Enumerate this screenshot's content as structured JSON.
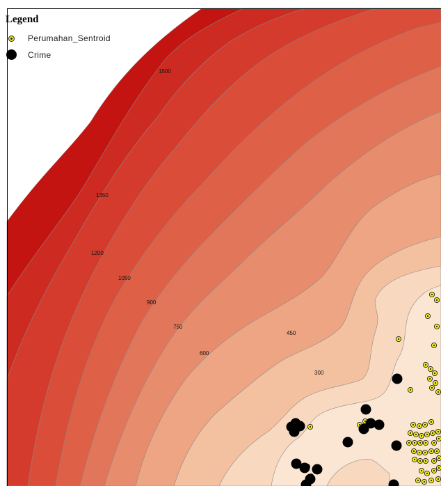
{
  "legend": {
    "title": "Legend",
    "items": [
      {
        "label": "Perumahan_Sentroid",
        "symbol": "yellow-dot-icon"
      },
      {
        "label": "Crime",
        "symbol": "black-dot-icon"
      }
    ]
  },
  "contours": [
    {
      "label": "1500"
    },
    {
      "label": "1350"
    },
    {
      "label": "1200"
    },
    {
      "label": "1050"
    },
    {
      "label": "900"
    },
    {
      "label": "750"
    },
    {
      "label": "600"
    },
    {
      "label": "450"
    },
    {
      "label": "300"
    }
  ],
  "colors": {
    "band_outer": "#c2100f",
    "band_inner": "#fbe6d4",
    "sentroid_fill": "#f2ee1c",
    "crime_fill": "#000000",
    "contour_line": "#8a8a8a"
  }
}
